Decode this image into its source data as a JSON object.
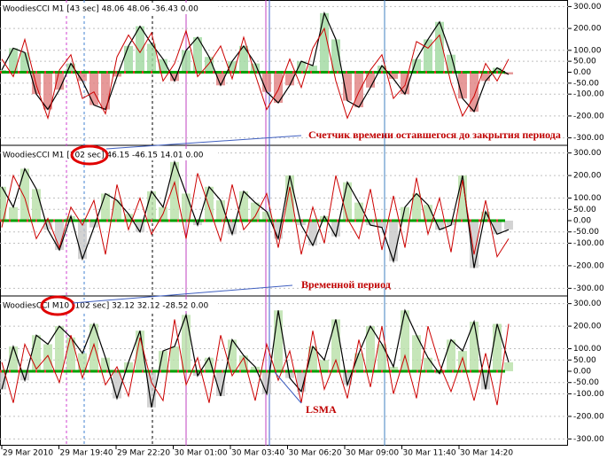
{
  "time_axis": [
    "29 Mar 2010",
    "29 Mar 19:40",
    "29 Mar 22:20",
    "30 Mar 01:00",
    "30 Mar 03:40",
    "30 Mar 06:20",
    "30 Mar 09:00",
    "30 Mar 11:40",
    "30 Mar 14:20"
  ],
  "annotations": [
    "Счетчик времени оставшегося до закрытия периода",
    "Временной период",
    "LSMA"
  ],
  "chart_data": [
    {
      "type": "line",
      "title": "WoodiesCCI M1 [43 sec] 48.06 48.06 -36.43 0.00",
      "ylim": [
        -330,
        330
      ],
      "yticks": [
        {
          "value": 300,
          "label": "300.00"
        },
        {
          "value": 200,
          "label": "200.00"
        },
        {
          "value": 100,
          "label": "100.00"
        },
        {
          "value": 50,
          "label": "50.00"
        },
        {
          "value": 0,
          "label": "0.00"
        },
        {
          "value": -50,
          "label": "-50.00"
        },
        {
          "value": -100,
          "label": "-100.00"
        },
        {
          "value": -200,
          "label": "-200.00"
        },
        {
          "value": -300,
          "label": "-300.00"
        }
      ],
      "hist_up_color": "#9fd89f",
      "hist_down_color": "#e08080",
      "series": [
        {
          "color": "#000000",
          "values": [
            10,
            110,
            90,
            -100,
            -170,
            -80,
            40,
            -40,
            -150,
            -170,
            -20,
            120,
            210,
            130,
            60,
            -40,
            100,
            160,
            70,
            -60,
            50,
            120,
            40,
            -90,
            -140,
            -60,
            50,
            30,
            270,
            150,
            -130,
            -160,
            -70,
            30,
            -30,
            -100,
            60,
            150,
            230,
            80,
            -120,
            -180,
            -40,
            20,
            -10
          ]
        },
        {
          "color": "#cc0000",
          "values": [
            60,
            -20,
            150,
            -60,
            -210,
            10,
            80,
            -120,
            -90,
            -190,
            70,
            170,
            90,
            180,
            -40,
            40,
            190,
            -20,
            40,
            120,
            -30,
            160,
            -10,
            -170,
            -80,
            60,
            -70,
            110,
            200,
            -40,
            -210,
            -90,
            10,
            80,
            -120,
            -60,
            140,
            110,
            170,
            -50,
            -200,
            -110,
            40,
            -40,
            60
          ]
        }
      ]
    },
    {
      "type": "line",
      "title": "WoodiesCCI M1 [102 sec] 46.15 -46.15 14.01 0.00",
      "ylim": [
        -330,
        330
      ],
      "yticks": [
        {
          "value": 300,
          "label": "300.00"
        },
        {
          "value": 200,
          "label": "200.00"
        },
        {
          "value": 100,
          "label": "100.00"
        },
        {
          "value": 50,
          "label": "50.00"
        },
        {
          "value": 0,
          "label": "0.00"
        },
        {
          "value": -50,
          "label": "-50.00"
        },
        {
          "value": -100,
          "label": "-100.00"
        },
        {
          "value": -200,
          "label": "-200.00"
        },
        {
          "value": -300,
          "label": "-300.00"
        }
      ],
      "hist_up_color": "#b8e0a8",
      "hist_down_color": "#c8c8c8",
      "series": [
        {
          "color": "#000000",
          "values": [
            150,
            60,
            230,
            140,
            -40,
            -130,
            20,
            -170,
            -30,
            120,
            90,
            30,
            -50,
            130,
            60,
            260,
            120,
            -20,
            150,
            90,
            -60,
            130,
            80,
            40,
            -80,
            200,
            -20,
            -110,
            20,
            -70,
            170,
            80,
            -20,
            -30,
            -180,
            60,
            120,
            70,
            -40,
            -20,
            200,
            -210,
            40,
            -60,
            -40
          ]
        },
        {
          "color": "#cc0000",
          "values": [
            -30,
            200,
            100,
            -80,
            10,
            -120,
            60,
            -20,
            90,
            -150,
            160,
            -40,
            100,
            -60,
            30,
            170,
            -80,
            210,
            60,
            -90,
            160,
            -40,
            20,
            120,
            -120,
            150,
            -150,
            60,
            -100,
            200,
            10,
            -80,
            140,
            -130,
            110,
            -120,
            190,
            -60,
            100,
            -140,
            180,
            -150,
            90,
            -160,
            -80
          ]
        }
      ]
    },
    {
      "type": "line",
      "title": "WoodiesCCI M10 [102 sec] 32.12 32.12 -28.52 0.00",
      "ylim": [
        -330,
        330
      ],
      "yticks": [
        {
          "value": 300,
          "label": "300.00"
        },
        {
          "value": 200,
          "label": "200.00"
        },
        {
          "value": 100,
          "label": "100.00"
        },
        {
          "value": 50,
          "label": "50.00"
        },
        {
          "value": 0,
          "label": "0.00"
        },
        {
          "value": -50,
          "label": "-50.00"
        },
        {
          "value": -100,
          "label": "-100.00"
        },
        {
          "value": -200,
          "label": "-200.00"
        },
        {
          "value": -300,
          "label": "-300.00"
        }
      ],
      "hist_up_color": "#b8e0a8",
      "hist_down_color": "#c8c8c8",
      "series": [
        {
          "color": "#000000",
          "values": [
            -80,
            110,
            -40,
            160,
            120,
            200,
            150,
            80,
            210,
            60,
            -120,
            40,
            180,
            -160,
            90,
            110,
            250,
            -20,
            60,
            -110,
            140,
            70,
            20,
            -100,
            270,
            -30,
            -90,
            110,
            50,
            230,
            -60,
            80,
            200,
            120,
            20,
            270,
            160,
            60,
            -10,
            140,
            90,
            220,
            -80,
            210,
            40
          ]
        },
        {
          "color": "#cc0000",
          "values": [
            40,
            -140,
            120,
            10,
            70,
            -50,
            160,
            -30,
            120,
            -60,
            20,
            -110,
            150,
            -50,
            -130,
            230,
            -60,
            60,
            -140,
            160,
            -20,
            60,
            -130,
            120,
            -40,
            90,
            -140,
            180,
            -80,
            50,
            -120,
            140,
            -70,
            200,
            -100,
            70,
            -120,
            200,
            30,
            -90,
            60,
            -130,
            80,
            -150,
            210
          ]
        }
      ]
    }
  ]
}
